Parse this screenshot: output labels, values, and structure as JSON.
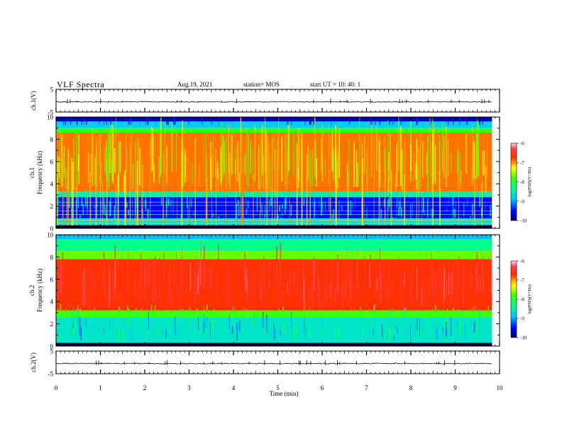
{
  "header": {
    "title": "VLF Spectra",
    "date": "Aug.19, 2021",
    "station": "station= MOS",
    "start": "start  UT =   10: 40: 1"
  },
  "chart_data": [
    {
      "type": "line",
      "name": "waveform-ch1",
      "ylabel": "ch.1(V)",
      "ylim": [
        -5,
        5
      ],
      "yticks": [
        "5",
        "-5"
      ],
      "xlim": [
        0,
        10
      ]
    },
    {
      "type": "heatmap",
      "name": "spectrogram-ch1",
      "ylabel": "ch.1 Frequency (kHz)",
      "ylim": [
        0,
        10
      ],
      "yticks": [
        "0",
        "2",
        "4",
        "6",
        "8",
        "10"
      ],
      "xlim": [
        0,
        10
      ],
      "bands": [
        {
          "from": 0,
          "to": 0.3,
          "level": -9.8
        },
        {
          "from": 0.3,
          "to": 0.9,
          "level": -8.6
        },
        {
          "from": 0.9,
          "to": 2.8,
          "level": -9.5
        },
        {
          "from": 2.8,
          "to": 3.3,
          "level": -8.5
        },
        {
          "from": 3.3,
          "to": 8.6,
          "level": -6.9
        },
        {
          "from": 8.6,
          "to": 9.0,
          "level": -7.9
        },
        {
          "from": 9.0,
          "to": 9.6,
          "level": -8.8
        },
        {
          "from": 9.6,
          "to": 10,
          "level": -9.7
        }
      ],
      "colorbar": {
        "label": "log(PSD)(V²/Hz)",
        "min": -10,
        "max": -6,
        "ticks": [
          "-6",
          "-7",
          "-8",
          "-9",
          "-10"
        ]
      }
    },
    {
      "type": "heatmap",
      "name": "spectrogram-ch2",
      "ylabel": "ch.2 Frequency (kHz)",
      "ylim": [
        0,
        10
      ],
      "yticks": [
        "0",
        "2",
        "4",
        "6",
        "8",
        "10"
      ],
      "xlim": [
        0,
        10
      ],
      "bands": [
        {
          "from": 0,
          "to": 0.3,
          "level": -9.9
        },
        {
          "from": 0.3,
          "to": 2.6,
          "level": -8.6
        },
        {
          "from": 2.6,
          "to": 3.2,
          "level": -7.8
        },
        {
          "from": 3.2,
          "to": 7.8,
          "level": -6.7
        },
        {
          "from": 7.8,
          "to": 8.6,
          "level": -7.7
        },
        {
          "from": 8.6,
          "to": 9.6,
          "level": -8.3
        },
        {
          "from": 9.6,
          "to": 10,
          "level": -8.9
        }
      ],
      "colorbar": {
        "label": "log(PSD)(V²/Hz)",
        "min": -10,
        "max": -6,
        "ticks": [
          "-6",
          "-7",
          "-8",
          "-9",
          "-10"
        ]
      }
    },
    {
      "type": "line",
      "name": "waveform-ch2",
      "ylabel": "ch.2(V)",
      "ylim": [
        -5,
        5
      ],
      "yticks": [
        "5",
        "-5"
      ],
      "xlim": [
        0,
        10
      ]
    }
  ],
  "xaxis": {
    "label": "Time (min)",
    "ticks": [
      "0",
      "1",
      "2",
      "3",
      "4",
      "5",
      "6",
      "7",
      "8",
      "9",
      "10"
    ]
  }
}
